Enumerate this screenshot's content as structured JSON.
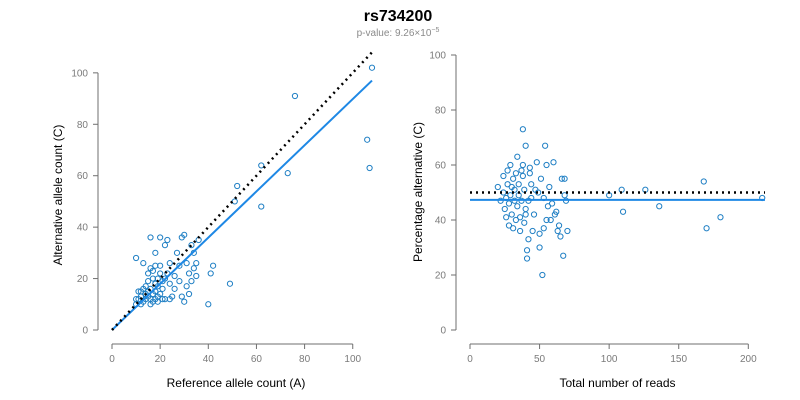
{
  "figure": {
    "title": "rs734200",
    "subtitle_prefix": "p-value: 9.26×10",
    "subtitle_exp": "−5"
  },
  "chart_data": [
    {
      "type": "scatter",
      "xlabel": "Reference allele count (A)",
      "ylabel": "Alternative allele count (C)",
      "xlim": [
        0,
        108
      ],
      "ylim": [
        0,
        105
      ],
      "xticks": [
        "0",
        "20",
        "40",
        "60",
        "80",
        "100"
      ],
      "yticks": [
        "0",
        "20",
        "40",
        "60",
        "80",
        "100"
      ],
      "grid": false,
      "point_color": "#1f7fc4",
      "fit_line": {
        "color": "#1e88e5",
        "x": [
          0,
          108
        ],
        "y": [
          0,
          97
        ]
      },
      "reference_line": {
        "color": "#000000",
        "style": "dotted",
        "x": [
          0,
          108
        ],
        "y": [
          0,
          108
        ]
      },
      "points": [
        [
          10,
          28
        ],
        [
          10,
          10
        ],
        [
          10,
          12
        ],
        [
          11,
          15
        ],
        [
          11,
          12
        ],
        [
          12,
          13
        ],
        [
          12,
          10
        ],
        [
          12,
          15
        ],
        [
          13,
          11
        ],
        [
          13,
          16
        ],
        [
          13,
          26
        ],
        [
          14,
          12
        ],
        [
          14,
          14
        ],
        [
          14,
          17
        ],
        [
          15,
          13
        ],
        [
          15,
          15
        ],
        [
          15,
          19
        ],
        [
          15,
          22
        ],
        [
          16,
          10
        ],
        [
          16,
          12
        ],
        [
          16,
          16
        ],
        [
          16,
          24
        ],
        [
          16,
          36
        ],
        [
          17,
          14
        ],
        [
          17,
          20
        ],
        [
          17,
          23
        ],
        [
          17,
          11
        ],
        [
          18,
          12
        ],
        [
          18,
          15
        ],
        [
          18,
          18
        ],
        [
          18,
          25
        ],
        [
          18,
          30
        ],
        [
          19,
          13
        ],
        [
          19,
          17
        ],
        [
          19,
          20
        ],
        [
          19,
          11
        ],
        [
          20,
          14
        ],
        [
          20,
          22
        ],
        [
          20,
          25
        ],
        [
          20,
          36
        ],
        [
          21,
          12
        ],
        [
          21,
          16
        ],
        [
          21,
          19
        ],
        [
          22,
          12
        ],
        [
          22,
          20
        ],
        [
          22,
          33
        ],
        [
          23,
          35
        ],
        [
          23,
          22
        ],
        [
          24,
          12
        ],
        [
          24,
          18
        ],
        [
          24,
          26
        ],
        [
          25,
          13
        ],
        [
          26,
          16
        ],
        [
          26,
          21
        ],
        [
          27,
          30
        ],
        [
          28,
          19
        ],
        [
          28,
          25
        ],
        [
          29,
          36
        ],
        [
          29,
          13
        ],
        [
          30,
          37
        ],
        [
          30,
          11
        ],
        [
          31,
          17
        ],
        [
          31,
          26
        ],
        [
          32,
          14
        ],
        [
          32,
          22
        ],
        [
          33,
          19
        ],
        [
          33,
          33
        ],
        [
          34,
          24
        ],
        [
          34,
          30
        ],
        [
          35,
          21
        ],
        [
          35,
          26
        ],
        [
          36,
          35
        ],
        [
          40,
          10
        ],
        [
          41,
          22
        ],
        [
          42,
          25
        ],
        [
          49,
          18
        ],
        [
          51,
          50
        ],
        [
          52,
          56
        ],
        [
          62,
          48
        ],
        [
          62,
          64
        ],
        [
          73,
          61
        ],
        [
          76,
          91
        ],
        [
          106,
          74
        ],
        [
          107,
          63
        ],
        [
          108,
          102
        ]
      ]
    },
    {
      "type": "scatter",
      "xlabel": "Total number of reads",
      "ylabel": "Percentage alternative (C)",
      "xlim": [
        0,
        212
      ],
      "ylim": [
        0,
        100
      ],
      "xticks": [
        "0",
        "50",
        "100",
        "150",
        "200"
      ],
      "yticks": [
        "0",
        "20",
        "40",
        "60",
        "80",
        "100"
      ],
      "grid": false,
      "point_color": "#1f7fc4",
      "fit_line": {
        "color": "#1e88e5",
        "x": [
          0,
          212
        ],
        "y": [
          47.3,
          47.3
        ]
      },
      "reference_line": {
        "color": "#000000",
        "style": "dotted",
        "x": [
          0,
          212
        ],
        "y": [
          50,
          50
        ]
      },
      "points": [
        [
          20,
          52
        ],
        [
          22,
          47
        ],
        [
          24,
          56
        ],
        [
          24,
          50
        ],
        [
          25,
          44
        ],
        [
          26,
          41
        ],
        [
          26,
          48
        ],
        [
          27,
          53
        ],
        [
          27,
          58
        ],
        [
          28,
          38
        ],
        [
          28,
          46
        ],
        [
          29,
          60
        ],
        [
          29,
          49
        ],
        [
          30,
          52
        ],
        [
          30,
          42
        ],
        [
          31,
          55
        ],
        [
          31,
          37
        ],
        [
          32,
          47
        ],
        [
          32,
          51
        ],
        [
          33,
          40
        ],
        [
          33,
          57
        ],
        [
          34,
          63
        ],
        [
          34,
          45
        ],
        [
          35,
          49
        ],
        [
          35,
          53
        ],
        [
          36,
          36
        ],
        [
          36,
          41
        ],
        [
          37,
          47
        ],
        [
          37,
          58
        ],
        [
          38,
          60
        ],
        [
          38,
          56
        ],
        [
          38,
          73
        ],
        [
          39,
          39
        ],
        [
          39,
          51
        ],
        [
          40,
          42
        ],
        [
          40,
          44
        ],
        [
          40,
          67
        ],
        [
          41,
          29
        ],
        [
          41,
          26
        ],
        [
          42,
          33
        ],
        [
          42,
          47
        ],
        [
          43,
          59
        ],
        [
          43,
          57
        ],
        [
          44,
          48
        ],
        [
          44,
          53
        ],
        [
          45,
          36
        ],
        [
          46,
          42
        ],
        [
          47,
          51
        ],
        [
          48,
          61
        ],
        [
          49,
          50
        ],
        [
          50,
          30
        ],
        [
          50,
          35
        ],
        [
          51,
          55
        ],
        [
          52,
          20
        ],
        [
          53,
          48
        ],
        [
          53,
          37
        ],
        [
          54,
          67
        ],
        [
          55,
          60
        ],
        [
          55,
          40
        ],
        [
          56,
          45
        ],
        [
          57,
          52
        ],
        [
          58,
          40
        ],
        [
          59,
          46
        ],
        [
          60,
          61
        ],
        [
          61,
          42
        ],
        [
          62,
          43
        ],
        [
          63,
          36
        ],
        [
          64,
          38
        ],
        [
          65,
          34
        ],
        [
          66,
          55
        ],
        [
          67,
          27
        ],
        [
          68,
          55
        ],
        [
          68,
          49
        ],
        [
          69,
          47
        ],
        [
          70,
          36
        ],
        [
          100,
          49
        ],
        [
          109,
          51
        ],
        [
          110,
          43
        ],
        [
          126,
          51
        ],
        [
          136,
          45
        ],
        [
          168,
          54
        ],
        [
          170,
          37
        ],
        [
          180,
          41
        ],
        [
          210,
          48
        ]
      ]
    }
  ]
}
